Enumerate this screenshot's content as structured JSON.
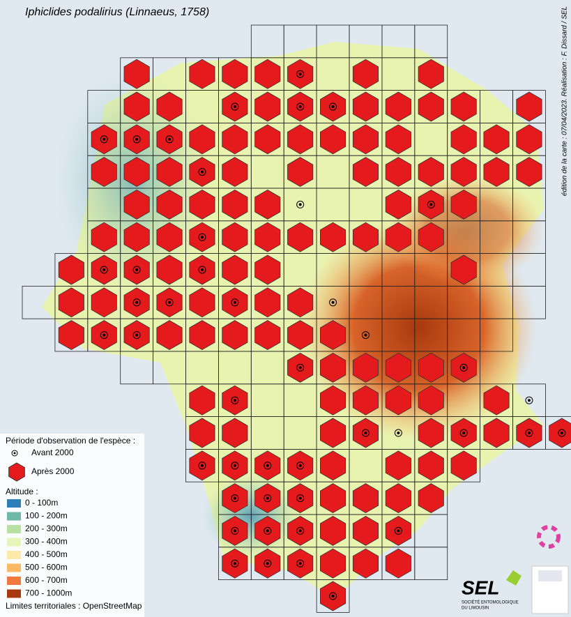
{
  "title": "Iphiclides podalirius (Linnaeus, 1758)",
  "credit": "édition de la carte : 07/04/2023. Réalisation : F. Dissard / SEL",
  "legend": {
    "title": "Période d'observation de l'espèce :",
    "before": "Avant 2000",
    "after": "Après 2000",
    "marker_color": "#e41a1c",
    "altitude_title": "Altitude :",
    "altitude_classes": [
      {
        "label": "0 - 100m",
        "color": "#2c7fb8"
      },
      {
        "label": "100 - 200m",
        "color": "#6fb8a8"
      },
      {
        "label": "200 - 300m",
        "color": "#b7e1a1"
      },
      {
        "label": "300 - 400m",
        "color": "#e6f5b8"
      },
      {
        "label": "400 - 500m",
        "color": "#fde9a9"
      },
      {
        "label": "500 - 600m",
        "color": "#fdb863"
      },
      {
        "label": "600 - 700m",
        "color": "#f0793e"
      },
      {
        "label": "700 - 1000m",
        "color": "#a8380e"
      }
    ],
    "source": "Limites territoriales : OpenStreetMap"
  },
  "logo": {
    "name": "SEL",
    "subtitle": "SOCIÉTÉ ENTOMOLOGIQUE",
    "subtitle2": "DU LIMOUSIN"
  }
}
